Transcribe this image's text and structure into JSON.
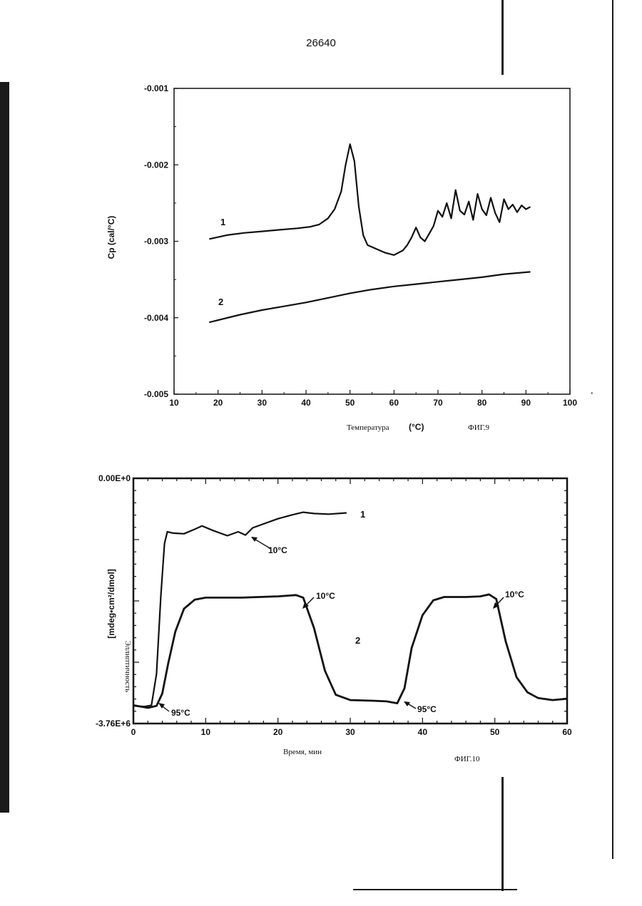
{
  "page_number": "26640",
  "chart_data": [
    {
      "type": "line",
      "figure_label": "ФИГ.9",
      "xlabel": "Температура",
      "xlabel_unit": "(°C)",
      "ylabel": "Cp (cal/°C)",
      "xlim": [
        10,
        100
      ],
      "ylim": [
        -0.005,
        -0.001
      ],
      "x_ticks": [
        "10",
        "20",
        "30",
        "40",
        "50",
        "60",
        "70",
        "80",
        "90",
        "100"
      ],
      "y_ticks": [
        "-0.001",
        "-0.002",
        "-0.003",
        "-0.004",
        "-0.005"
      ],
      "y_tick_values": [
        -0.001,
        -0.002,
        -0.003,
        -0.004,
        -0.005
      ],
      "series": [
        {
          "name": "1",
          "x": [
            18,
            22,
            26,
            30,
            34,
            38,
            41,
            43,
            45,
            46.5,
            48,
            49,
            50,
            51,
            52,
            53,
            54,
            56,
            58,
            60,
            62,
            63,
            64,
            65,
            66,
            67,
            68,
            69,
            70,
            71,
            72,
            73,
            74,
            75,
            76,
            77,
            78,
            79,
            80,
            81,
            82,
            83,
            84,
            85,
            86,
            87,
            88,
            89,
            90,
            91
          ],
          "values": [
            -0.00297,
            -0.00292,
            -0.00289,
            -0.00287,
            -0.00285,
            -0.00283,
            -0.00281,
            -0.00278,
            -0.0027,
            -0.00258,
            -0.00235,
            -0.002,
            -0.00173,
            -0.00195,
            -0.00255,
            -0.00292,
            -0.00305,
            -0.0031,
            -0.00315,
            -0.00318,
            -0.00312,
            -0.00305,
            -0.00295,
            -0.00282,
            -0.00295,
            -0.003,
            -0.0029,
            -0.0028,
            -0.0026,
            -0.00268,
            -0.0025,
            -0.0027,
            -0.00233,
            -0.0026,
            -0.00265,
            -0.00248,
            -0.00272,
            -0.00238,
            -0.00258,
            -0.00266,
            -0.00243,
            -0.00263,
            -0.00275,
            -0.00245,
            -0.00258,
            -0.00252,
            -0.00262,
            -0.00253,
            -0.00258,
            -0.00255
          ]
        },
        {
          "name": "2",
          "x": [
            18,
            25,
            30,
            35,
            40,
            45,
            50,
            55,
            60,
            65,
            70,
            75,
            80,
            85,
            91
          ],
          "values": [
            -0.00406,
            -0.00396,
            -0.0039,
            -0.00385,
            -0.0038,
            -0.00374,
            -0.00368,
            -0.00363,
            -0.00359,
            -0.00356,
            -0.00353,
            -0.0035,
            -0.00347,
            -0.00343,
            -0.0034
          ]
        }
      ],
      "series_labels": [
        "1",
        "2"
      ]
    },
    {
      "type": "line",
      "figure_label": "ФИГ.10",
      "xlabel": "Время, мин",
      "ylabel": "[mdeg•cm²/dmol]",
      "ylabel_secondary": "Эллиптичность",
      "xlim": [
        0,
        60
      ],
      "x_ticks": [
        "0",
        "10",
        "20",
        "30",
        "40",
        "50",
        "60"
      ],
      "y_ticks": [
        "0.00E+0",
        "-3.76E+6"
      ],
      "ylim": [
        -3760000,
        0
      ],
      "series": [
        {
          "name": "1",
          "x": [
            0,
            1.5,
            2.5,
            3.2,
            3.8,
            4.3,
            4.7,
            5.5,
            7,
            8.5,
            9.5,
            11,
            13,
            14.5,
            15.5,
            16.5,
            18,
            20,
            22,
            23.5,
            25,
            27,
            29.5
          ],
          "values": [
            -3490000,
            -3500000,
            -3480000,
            -3000000,
            -1800000,
            -1000000,
            -820000,
            -840000,
            -850000,
            -780000,
            -730000,
            -800000,
            -880000,
            -820000,
            -870000,
            -760000,
            -700000,
            -620000,
            -560000,
            -520000,
            -540000,
            -550000,
            -530000
          ]
        },
        {
          "name": "2",
          "x": [
            0,
            2,
            3.2,
            4,
            4.8,
            5.8,
            7,
            8.5,
            10,
            15,
            20,
            22.5,
            23.5,
            25,
            26.5,
            28,
            30,
            33,
            35,
            36.5,
            37.5,
            38.5,
            40,
            41.5,
            43,
            46,
            48,
            49.2,
            50.2,
            51.5,
            53,
            54.5,
            56,
            58,
            60
          ],
          "values": [
            -3480000,
            -3520000,
            -3490000,
            -3300000,
            -2850000,
            -2350000,
            -2000000,
            -1860000,
            -1830000,
            -1830000,
            -1810000,
            -1790000,
            -1830000,
            -2300000,
            -2950000,
            -3320000,
            -3400000,
            -3410000,
            -3420000,
            -3450000,
            -3220000,
            -2600000,
            -2100000,
            -1870000,
            -1820000,
            -1820000,
            -1810000,
            -1780000,
            -1850000,
            -2500000,
            -3050000,
            -3280000,
            -3370000,
            -3400000,
            -3380000
          ]
        }
      ],
      "series_labels": [
        "1",
        "2"
      ],
      "annotations": [
        "10°C",
        "10°C",
        "10°C",
        "95°C",
        "95°C"
      ]
    }
  ]
}
